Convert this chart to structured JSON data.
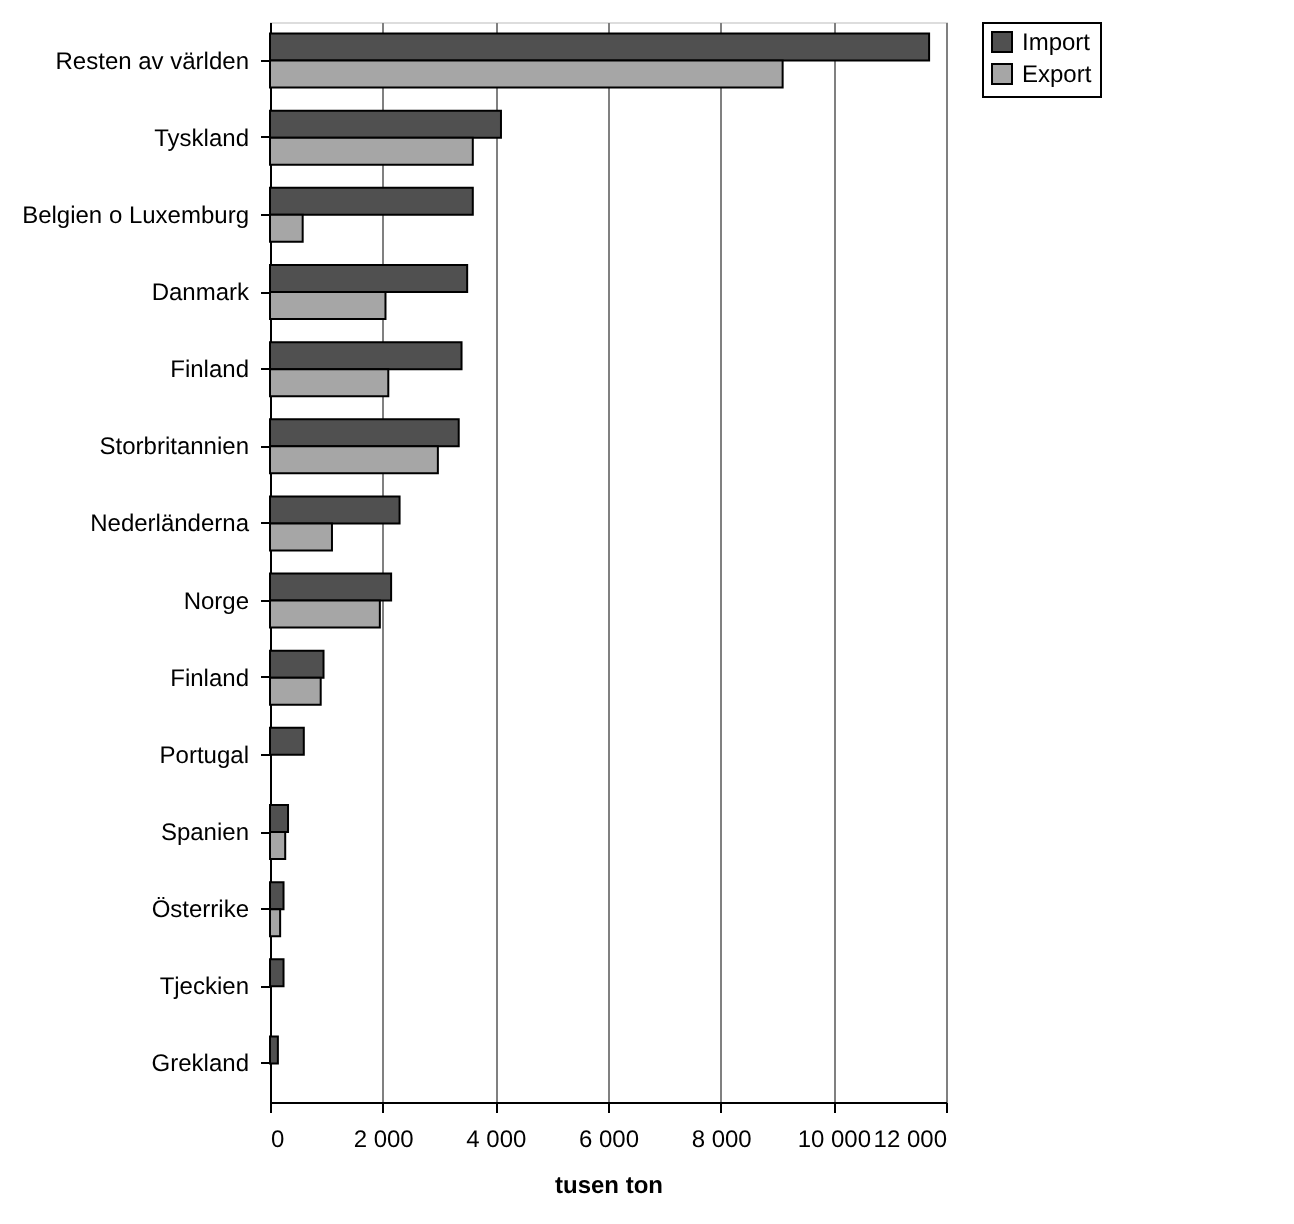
{
  "chart_data": {
    "type": "bar",
    "orientation": "horizontal",
    "xlabel": "tusen ton",
    "categories": [
      "Resten av världen",
      "Tyskland",
      "Belgien o Luxemburg",
      "Danmark",
      "Finland",
      "Storbritannien",
      "Nederländerna",
      "Norge",
      "Finland",
      "Portugal",
      "Spanien",
      "Österrike",
      "Tjeckien",
      "Grekland"
    ],
    "series": [
      {
        "name": "Import",
        "color": "#505050",
        "values": [
          11700,
          4100,
          3600,
          3500,
          3400,
          3350,
          2300,
          2150,
          950,
          600,
          320,
          240,
          240,
          140
        ]
      },
      {
        "name": "Export",
        "color": "#a6a6a6",
        "values": [
          9100,
          3600,
          580,
          2050,
          2100,
          2980,
          1100,
          1950,
          900,
          null,
          270,
          180,
          null,
          null
        ]
      }
    ],
    "xlim": [
      0,
      12000
    ],
    "xticks": [
      0,
      {
        "value": 2000,
        "label": "2 000"
      },
      {
        "value": 4000,
        "label": "4 000"
      },
      {
        "value": 6000,
        "label": "6 000"
      },
      {
        "value": 8000,
        "label": "8 000"
      },
      {
        "value": 10000,
        "label": "10 000"
      },
      {
        "value": 12000,
        "label": "12 000"
      }
    ],
    "grid": "x",
    "legend": "right"
  }
}
